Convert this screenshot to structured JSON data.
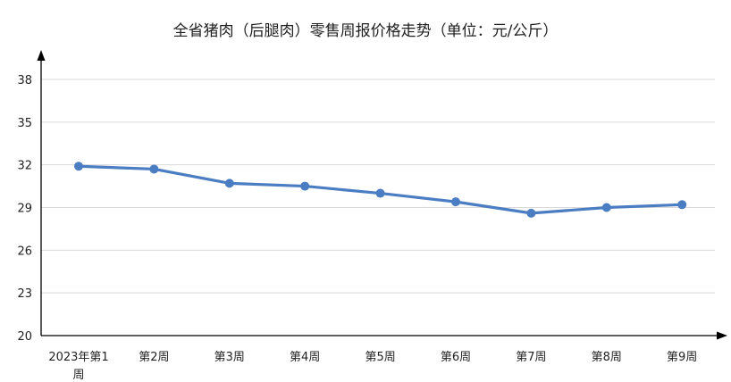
{
  "chart_data": {
    "type": "line",
    "title": "全省猪肉（后腿肉）零售周报价格走势（单位：元/公斤）",
    "categories": [
      "2023年第1周",
      "第2周",
      "第3周",
      "第4周",
      "第5周",
      "第6周",
      "第7周",
      "第8周",
      "第9周"
    ],
    "series": [
      {
        "values": [
          31.9,
          31.7,
          30.7,
          30.5,
          30.0,
          29.4,
          28.6,
          29.0,
          29.2
        ]
      }
    ],
    "ylim": [
      20,
      38
    ],
    "yticks": [
      20,
      23,
      26,
      29,
      32,
      35,
      38
    ],
    "grid": true,
    "legend": "none",
    "colors": {
      "line": "#4a7dc2",
      "grid": "#d9d9d9",
      "axis": "#000000"
    }
  }
}
